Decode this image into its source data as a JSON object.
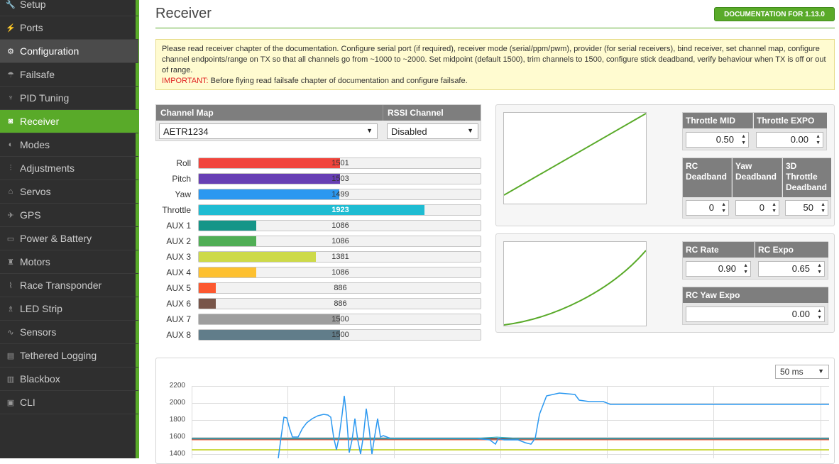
{
  "sidebar": {
    "items": [
      {
        "label": "Setup",
        "icon": "wrench-icon",
        "glyph": "🔧",
        "state": ""
      },
      {
        "label": "Ports",
        "icon": "plug-icon",
        "glyph": "⚡",
        "state": ""
      },
      {
        "label": "Configuration",
        "icon": "gear-icon",
        "glyph": "⚙",
        "state": "sel-config"
      },
      {
        "label": "Failsafe",
        "icon": "parachute-icon",
        "glyph": "☂",
        "state": ""
      },
      {
        "label": "PID Tuning",
        "icon": "sitemap-icon",
        "glyph": "♆",
        "state": ""
      },
      {
        "label": "Receiver",
        "icon": "receiver-icon",
        "glyph": "◙",
        "state": "active"
      },
      {
        "label": "Modes",
        "icon": "toggle-icon",
        "glyph": "◐",
        "state": ""
      },
      {
        "label": "Adjustments",
        "icon": "sliders-icon",
        "glyph": "⫶",
        "state": ""
      },
      {
        "label": "Servos",
        "icon": "servo-icon",
        "glyph": "⌂",
        "state": ""
      },
      {
        "label": "GPS",
        "icon": "satellite-icon",
        "glyph": "✈",
        "state": ""
      },
      {
        "label": "Power & Battery",
        "icon": "battery-icon",
        "glyph": "▭",
        "state": ""
      },
      {
        "label": "Motors",
        "icon": "motor-icon",
        "glyph": "♜",
        "state": ""
      },
      {
        "label": "Race Transponder",
        "icon": "transponder-icon",
        "glyph": "⌇",
        "state": ""
      },
      {
        "label": "LED Strip",
        "icon": "led-icon",
        "glyph": "♗",
        "state": ""
      },
      {
        "label": "Sensors",
        "icon": "pulse-icon",
        "glyph": "∿",
        "state": ""
      },
      {
        "label": "Tethered Logging",
        "icon": "keyboard-icon",
        "glyph": "▤",
        "state": ""
      },
      {
        "label": "Blackbox",
        "icon": "blackbox-icon",
        "glyph": "▥",
        "state": ""
      },
      {
        "label": "CLI",
        "icon": "terminal-icon",
        "glyph": "▣",
        "state": ""
      }
    ]
  },
  "header": {
    "title": "Receiver",
    "doc_button": "DOCUMENTATION FOR 1.13.0"
  },
  "note": {
    "text": "Please read receiver chapter of the documentation. Configure serial port (if required), receiver mode (serial/ppm/pwm), provider (for serial receivers), bind receiver, set channel map, configure channel endpoints/range on TX so that all channels go from ~1000 to ~2000. Set midpoint (default 1500), trim channels to 1500, configure stick deadband, verify behaviour when TX is off or out of range.",
    "important_label": "IMPORTANT:",
    "important_text": " Before flying read failsafe chapter of documentation and configure failsafe."
  },
  "channel_map": {
    "header": "Channel Map",
    "value": "AETR1234",
    "rssi_header": "RSSI Channel",
    "rssi_value": "Disabled"
  },
  "channels": [
    {
      "label": "Roll",
      "value": 1501,
      "color": "#f1453d"
    },
    {
      "label": "Pitch",
      "value": 1503,
      "color": "#673fb4"
    },
    {
      "label": "Yaw",
      "value": 1499,
      "color": "#2b98f0"
    },
    {
      "label": "Throttle",
      "value": 1923,
      "color": "#1fbcd2"
    },
    {
      "label": "AUX 1",
      "value": 1086,
      "color": "#159588"
    },
    {
      "label": "AUX 2",
      "value": 1086,
      "color": "#50ae55"
    },
    {
      "label": "AUX 3",
      "value": 1381,
      "color": "#cdda49"
    },
    {
      "label": "AUX 4",
      "value": 1086,
      "color": "#fdc02f"
    },
    {
      "label": "AUX 5",
      "value": 886,
      "color": "#fc5830"
    },
    {
      "label": "AUX 6",
      "value": 886,
      "color": "#785549"
    },
    {
      "label": "AUX 7",
      "value": 1500,
      "color": "#9e9e9e"
    },
    {
      "label": "AUX 8",
      "value": 1500,
      "color": "#617d8a"
    }
  ],
  "throttle": {
    "mid_label": "Throttle MID",
    "mid_value": "0.50",
    "expo_label": "Throttle EXPO",
    "expo_value": "0.00",
    "rc_deadband_label": "RC Deadband",
    "rc_deadband_value": "0",
    "yaw_deadband_label": "Yaw Deadband",
    "yaw_deadband_value": "0",
    "throttle3d_label": "3D Throttle Deadband",
    "throttle3d_value": "50"
  },
  "rates": {
    "rc_rate_label": "RC Rate",
    "rc_rate_value": "0.90",
    "rc_expo_label": "RC Expo",
    "rc_expo_value": "0.65",
    "yaw_expo_label": "RC Yaw Expo",
    "yaw_expo_value": "0.00"
  },
  "graph": {
    "refresh": "50 ms",
    "y_ticks": [
      "2200",
      "2000",
      "1800",
      "1600",
      "1400"
    ]
  },
  "colors": {
    "accent": "#59aa29",
    "sidebar_bg": "#2f2f2f",
    "header_gray": "#7e7e7e"
  }
}
